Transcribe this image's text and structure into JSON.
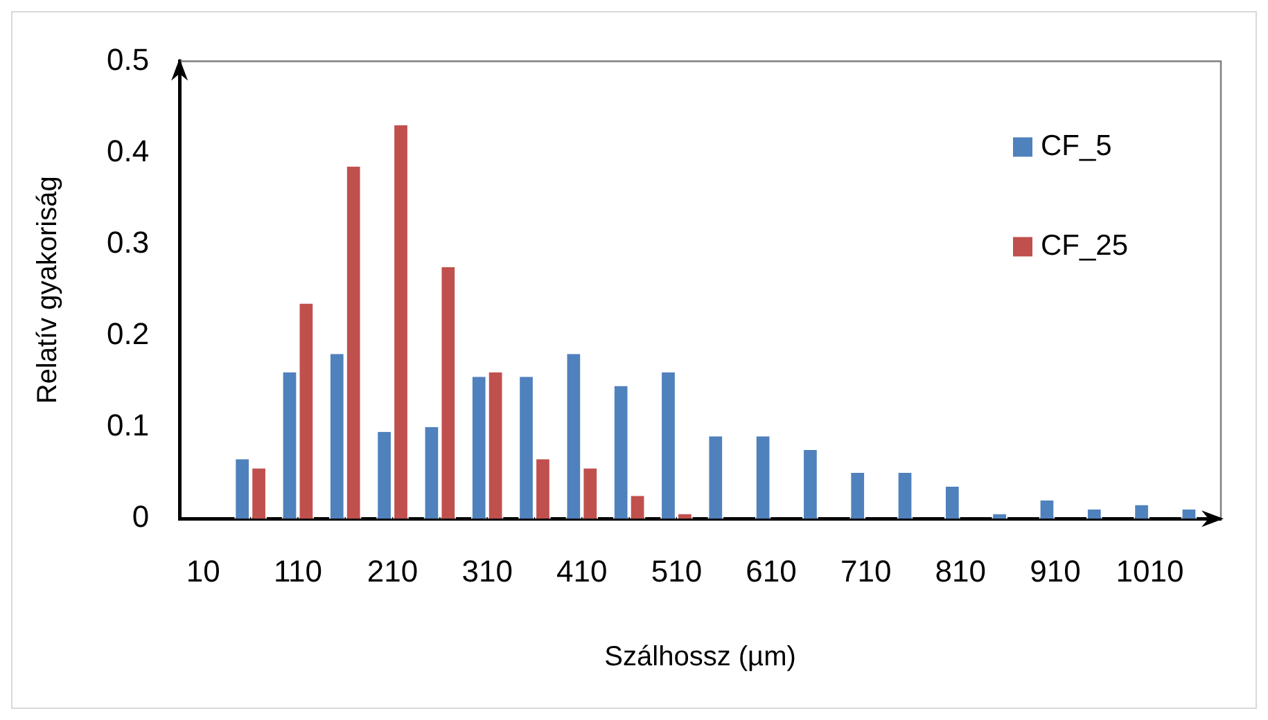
{
  "chart_data": {
    "type": "bar",
    "xlabel": "Szálhossz (µm)",
    "ylabel": "Relatív gyakoriság",
    "categories": [
      "10",
      null,
      "110",
      null,
      "210",
      null,
      "310",
      null,
      "410",
      null,
      "510",
      null,
      "610",
      null,
      "710",
      null,
      "810",
      null,
      "910",
      null,
      "1010",
      null
    ],
    "series": [
      {
        "name": "CF_5",
        "color": "#4f81bd",
        "values": [
          0,
          0.065,
          0.16,
          0.18,
          0.095,
          0.1,
          0.155,
          0.155,
          0.18,
          0.145,
          0.16,
          0.09,
          0.09,
          0.075,
          0.05,
          0.05,
          0.035,
          0.005,
          0.02,
          0.01,
          0.015,
          0.01
        ]
      },
      {
        "name": "CF_25",
        "color": "#c0504d",
        "values": [
          0,
          0.055,
          0.235,
          0.385,
          0.43,
          0.275,
          0.16,
          0.065,
          0.055,
          0.025,
          0.005,
          0,
          0,
          0,
          0,
          0,
          0,
          0,
          0,
          0,
          0,
          0
        ]
      }
    ],
    "ylim": [
      0,
      0.5
    ],
    "yticks": [
      0,
      0.1,
      0.2,
      0.3,
      0.4,
      0.5
    ],
    "grid": false,
    "legend": "top right"
  }
}
